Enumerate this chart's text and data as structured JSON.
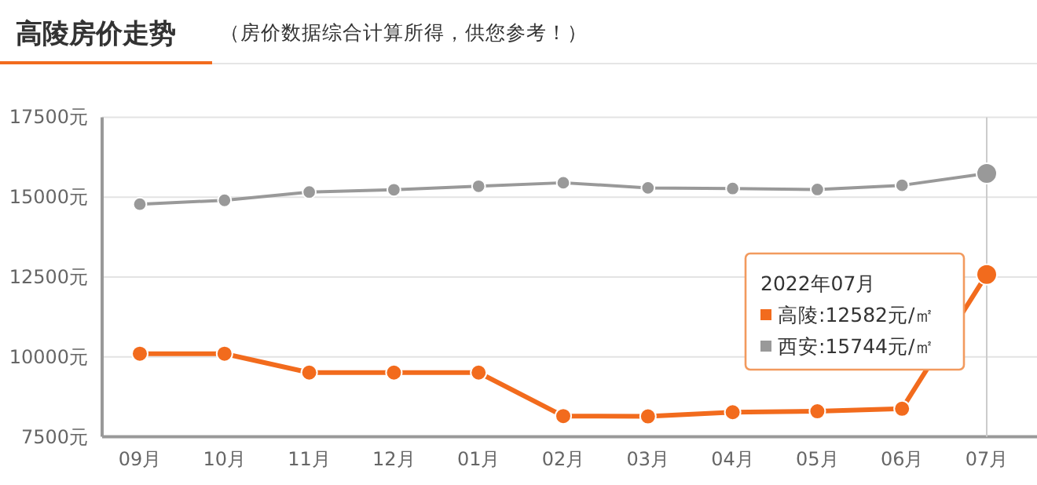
{
  "chart_data": {
    "type": "line",
    "title": "高陵房价走势",
    "subtitle": "（房价数据综合计算所得，供您参考！）",
    "categories": [
      "09月",
      "10月",
      "11月",
      "12月",
      "01月",
      "02月",
      "03月",
      "04月",
      "05月",
      "06月",
      "07月"
    ],
    "ylim": [
      7500,
      17500
    ],
    "yticks": [
      {
        "value": 7500,
        "label": "7500元"
      },
      {
        "value": 10000,
        "label": "10000元"
      },
      {
        "value": 12500,
        "label": "12500元"
      },
      {
        "value": 15000,
        "label": "15000元"
      },
      {
        "value": 17500,
        "label": "17500元"
      }
    ],
    "grid": "y",
    "marker": "circle",
    "annotations": [
      "2022年07月",
      "高陵:12582元/㎡",
      "西安:15744元/㎡"
    ],
    "ref_lines": [
      {
        "axis": "x",
        "value": "07月",
        "color": "#cccccc"
      }
    ],
    "series": [
      {
        "color": "#f26b1d",
        "values": [
          10100,
          10100,
          9510,
          9510,
          9510,
          8150,
          8140,
          8270,
          8300,
          8380,
          12582
        ]
      },
      {
        "color": "#999999",
        "values": [
          14780,
          14900,
          15160,
          15230,
          15340,
          15450,
          15290,
          15270,
          15240,
          15370,
          15744
        ]
      }
    ]
  }
}
